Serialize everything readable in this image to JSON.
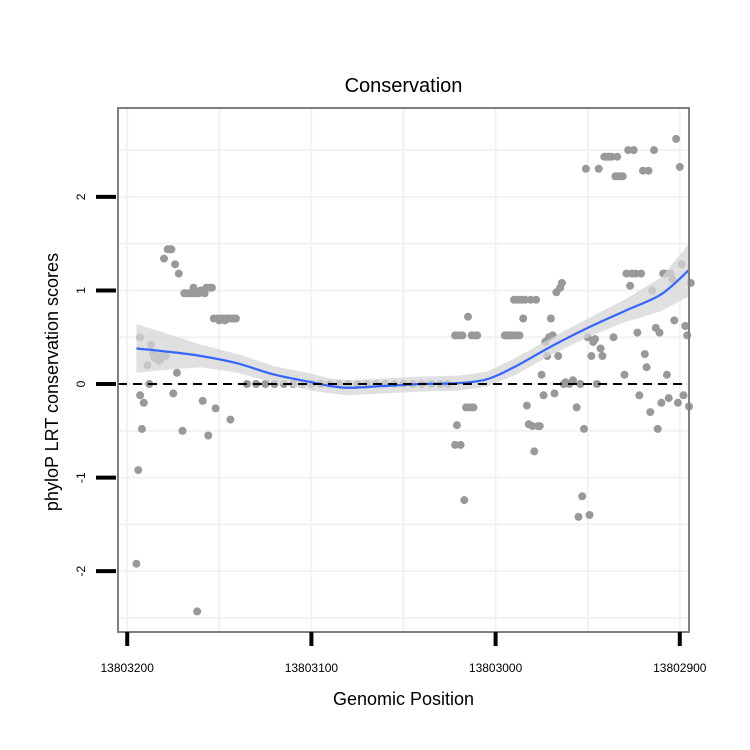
{
  "chart_data": {
    "type": "scatter",
    "title": "Conservation",
    "xlabel": "Genomic Position",
    "ylabel": "phyloP LRT conservation scores",
    "x_reversed": true,
    "xlim": [
      13803205,
      13802895
    ],
    "ylim": [
      -2.65,
      2.95
    ],
    "x_ticks": [
      13803200,
      13803100,
      13803000,
      13802900
    ],
    "x_tick_labels": [
      "13803200",
      "13803100",
      "13803000",
      "13802900"
    ],
    "y_ticks": [
      -2,
      -1,
      0,
      1,
      2
    ],
    "y_tick_labels": [
      "-2",
      "-1",
      "0",
      "1",
      "2"
    ],
    "grid": true,
    "reference_line": {
      "y": 0,
      "style": "dashed",
      "color": "#000000"
    },
    "colors": {
      "points": "#999999",
      "smooth": "#3366ff",
      "ribbon": "#d6d6d6",
      "panel_border": "#7f7f7f",
      "grid": "#f2f2f2"
    },
    "series": [
      {
        "kind": "points",
        "points": [
          [
            13803195,
            -1.92
          ],
          [
            13803194,
            -0.92
          ],
          [
            13803193,
            0.5
          ],
          [
            13803193,
            -0.12
          ],
          [
            13803192,
            -0.48
          ],
          [
            13803191,
            -0.2
          ],
          [
            13803189,
            0.2
          ],
          [
            13803188,
            0.0
          ],
          [
            13803187,
            0.42
          ],
          [
            13803186,
            0.32
          ],
          [
            13803185,
            0.28
          ],
          [
            13803184,
            0.3
          ],
          [
            13803183,
            0.25
          ],
          [
            13803182,
            0.26
          ],
          [
            13803181,
            0.3
          ],
          [
            13803180,
            1.34
          ],
          [
            13803179,
            0.3
          ],
          [
            13803178,
            1.44
          ],
          [
            13803177,
            1.44
          ],
          [
            13803176,
            1.44
          ],
          [
            13803175,
            -0.1
          ],
          [
            13803174,
            1.28
          ],
          [
            13803173,
            0.12
          ],
          [
            13803172,
            1.18
          ],
          [
            13803170,
            -0.5
          ],
          [
            13803169,
            0.97
          ],
          [
            13803168,
            0.97
          ],
          [
            13803166,
            0.97
          ],
          [
            13803165,
            0.97
          ],
          [
            13803164,
            1.03
          ],
          [
            13803163,
            0.97
          ],
          [
            13803162,
            -2.43
          ],
          [
            13803161,
            0.97
          ],
          [
            13803160,
            1.0
          ],
          [
            13803159,
            -0.18
          ],
          [
            13803158,
            0.97
          ],
          [
            13803157,
            1.03
          ],
          [
            13803156,
            -0.55
          ],
          [
            13803155,
            1.03
          ],
          [
            13803154,
            1.03
          ],
          [
            13803153,
            0.7
          ],
          [
            13803152,
            -0.26
          ],
          [
            13803151,
            0.7
          ],
          [
            13803150,
            0.68
          ],
          [
            13803149,
            0.7
          ],
          [
            13803148,
            0.7
          ],
          [
            13803147,
            0.68
          ],
          [
            13803146,
            0.7
          ],
          [
            13803145,
            0.7
          ],
          [
            13803144,
            -0.38
          ],
          [
            13803143,
            0.7
          ],
          [
            13803142,
            0.7
          ],
          [
            13803141,
            0.7
          ],
          [
            13803135,
            0.0
          ],
          [
            13803130,
            0.0
          ],
          [
            13803125,
            0.0
          ],
          [
            13803120,
            0.0
          ],
          [
            13803115,
            0.0
          ],
          [
            13803110,
            0.0
          ],
          [
            13803105,
            0.0
          ],
          [
            13803100,
            0.0
          ],
          [
            13803095,
            0.0
          ],
          [
            13803090,
            0.0
          ],
          [
            13803085,
            0.0
          ],
          [
            13803080,
            0.0
          ],
          [
            13803075,
            0.0
          ],
          [
            13803070,
            0.0
          ],
          [
            13803065,
            0.0
          ],
          [
            13803060,
            0.0
          ],
          [
            13803055,
            0.0
          ],
          [
            13803050,
            0.0
          ],
          [
            13803045,
            0.0
          ],
          [
            13803040,
            0.0
          ],
          [
            13803035,
            0.0
          ],
          [
            13803030,
            0.0
          ],
          [
            13803026,
            0.0
          ],
          [
            13803022,
            0.52
          ],
          [
            13803022,
            -0.65
          ],
          [
            13803021,
            -0.44
          ],
          [
            13803020,
            0.52
          ],
          [
            13803019,
            -0.65
          ],
          [
            13803018,
            0.52
          ],
          [
            13803017,
            -1.24
          ],
          [
            13803016,
            -0.25
          ],
          [
            13803015,
            0.72
          ],
          [
            13803014,
            -0.25
          ],
          [
            13803013,
            0.52
          ],
          [
            13803012,
            -0.25
          ],
          [
            13803011,
            0.52
          ],
          [
            13803010,
            0.52
          ],
          [
            13802995,
            0.52
          ],
          [
            13802994,
            0.52
          ],
          [
            13802993,
            0.52
          ],
          [
            13802992,
            0.52
          ],
          [
            13802991,
            0.52
          ],
          [
            13802990,
            0.9
          ],
          [
            13802989,
            0.52
          ],
          [
            13802988,
            0.9
          ],
          [
            13802987,
            0.52
          ],
          [
            13802986,
            0.9
          ],
          [
            13802985,
            0.7
          ],
          [
            13802984,
            0.9
          ],
          [
            13802983,
            -0.23
          ],
          [
            13802982,
            -0.43
          ],
          [
            13802981,
            0.9
          ],
          [
            13802980,
            -0.45
          ],
          [
            13802979,
            -0.72
          ],
          [
            13802978,
            0.9
          ],
          [
            13802977,
            -0.45
          ],
          [
            13802976,
            -0.45
          ],
          [
            13802975,
            0.1
          ],
          [
            13802974,
            -0.12
          ],
          [
            13802973,
            0.45
          ],
          [
            13802972,
            0.3
          ],
          [
            13802971,
            0.5
          ],
          [
            13802970,
            0.7
          ],
          [
            13802969,
            0.52
          ],
          [
            13802968,
            -0.1
          ],
          [
            13802967,
            0.98
          ],
          [
            13802966,
            0.3
          ],
          [
            13802965,
            1.03
          ],
          [
            13802964,
            1.08
          ],
          [
            13802963,
            0.0
          ],
          [
            13802962,
            0.02
          ],
          [
            13802960,
            0.0
          ],
          [
            13802958,
            0.04
          ],
          [
            13802956,
            -0.25
          ],
          [
            13802955,
            -1.42
          ],
          [
            13802954,
            0.0
          ],
          [
            13802953,
            -1.2
          ],
          [
            13802952,
            -0.48
          ],
          [
            13802951,
            2.3
          ],
          [
            13802950,
            0.5
          ],
          [
            13802949,
            -1.4
          ],
          [
            13802948,
            0.3
          ],
          [
            13802947,
            0.45
          ],
          [
            13802946,
            0.48
          ],
          [
            13802945,
            0.0
          ],
          [
            13802944,
            2.3
          ],
          [
            13802943,
            0.38
          ],
          [
            13802942,
            0.3
          ],
          [
            13802941,
            2.43
          ],
          [
            13802940,
            2.43
          ],
          [
            13802939,
            2.43
          ],
          [
            13802938,
            2.43
          ],
          [
            13802937,
            2.43
          ],
          [
            13802936,
            0.5
          ],
          [
            13802935,
            2.22
          ],
          [
            13802934,
            2.43
          ],
          [
            13802933,
            2.22
          ],
          [
            13802932,
            2.22
          ],
          [
            13802931,
            2.22
          ],
          [
            13802930,
            0.1
          ],
          [
            13802929,
            1.18
          ],
          [
            13802928,
            2.5
          ],
          [
            13802927,
            1.05
          ],
          [
            13802926,
            1.18
          ],
          [
            13802925,
            2.5
          ],
          [
            13802924,
            1.18
          ],
          [
            13802923,
            0.55
          ],
          [
            13802922,
            -0.12
          ],
          [
            13802921,
            1.18
          ],
          [
            13802920,
            2.28
          ],
          [
            13802919,
            0.32
          ],
          [
            13802918,
            0.18
          ],
          [
            13802917,
            2.28
          ],
          [
            13802916,
            -0.3
          ],
          [
            13802915,
            1.0
          ],
          [
            13802914,
            2.5
          ],
          [
            13802913,
            0.6
          ],
          [
            13802912,
            -0.48
          ],
          [
            13802911,
            0.55
          ],
          [
            13802910,
            -0.2
          ],
          [
            13802909,
            1.18
          ],
          [
            13802908,
            1.18
          ],
          [
            13802907,
            0.1
          ],
          [
            13802906,
            -0.15
          ],
          [
            13802905,
            1.18
          ],
          [
            13802904,
            1.12
          ],
          [
            13802903,
            0.68
          ],
          [
            13802902,
            2.62
          ],
          [
            13802901,
            -0.2
          ],
          [
            13802900,
            2.32
          ],
          [
            13802899,
            1.28
          ],
          [
            13802898,
            -0.12
          ],
          [
            13802897,
            0.62
          ],
          [
            13802896,
            0.52
          ],
          [
            13802895,
            -0.24
          ],
          [
            13802894,
            1.08
          ]
        ]
      },
      {
        "kind": "smooth",
        "name": "",
        "points": [
          [
            13803195,
            0.38
          ],
          [
            13803180,
            0.35
          ],
          [
            13803160,
            0.3
          ],
          [
            13803140,
            0.22
          ],
          [
            13803120,
            0.1
          ],
          [
            13803100,
            0.02
          ],
          [
            13803090,
            -0.02
          ],
          [
            13803080,
            -0.04
          ],
          [
            13803060,
            -0.02
          ],
          [
            13803040,
            0.0
          ],
          [
            13803020,
            0.01
          ],
          [
            13803005,
            0.05
          ],
          [
            13802990,
            0.18
          ],
          [
            13802970,
            0.4
          ],
          [
            13802950,
            0.6
          ],
          [
            13802930,
            0.78
          ],
          [
            13802910,
            0.96
          ],
          [
            13802895,
            1.22
          ]
        ],
        "ribbon_half_width": [
          0.26,
          0.2,
          0.12,
          0.1,
          0.09,
          0.09,
          0.08,
          0.08,
          0.08,
          0.08,
          0.08,
          0.08,
          0.09,
          0.09,
          0.1,
          0.12,
          0.18,
          0.28
        ]
      }
    ]
  }
}
